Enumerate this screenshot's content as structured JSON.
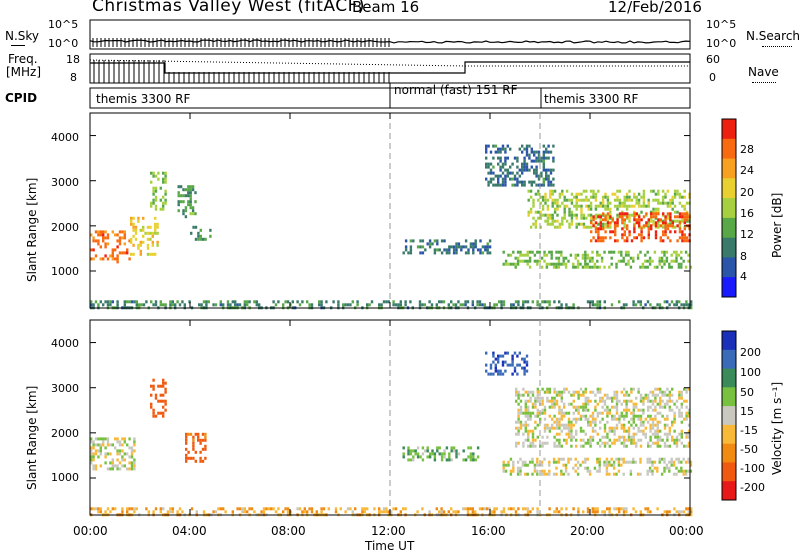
{
  "header": {
    "title": "Christmas Valley West (fitACF)",
    "beam": "Beam 16",
    "date": "12/Feb/2016"
  },
  "summary": {
    "nsky_label": "N.Sky",
    "nsky_ticks": [
      "10^5",
      "10^0"
    ],
    "nsearch_label": "N.Search",
    "nsearch_ticks": [
      "10^5",
      "10^0"
    ],
    "freq_label": "Freq.",
    "freq_unit": "[MHz]",
    "freq_ticks": [
      "18",
      "8"
    ],
    "nave_label": "Nave",
    "nave_ticks": [
      "60",
      "0"
    ],
    "cpid_label": "CPID",
    "cpid_segments": [
      {
        "label": "themis 3300 RF",
        "start_hour": 0
      },
      {
        "label": "normal (fast) 151 RF",
        "start_hour": 12
      },
      {
        "label": "themis 3300 RF",
        "start_hour": 18
      }
    ]
  },
  "axes": {
    "ylabel": "Slant Range [km]",
    "yticks": [
      "1000",
      "2000",
      "3000",
      "4000"
    ],
    "xlabel": "Time UT",
    "xticks": [
      "00:00",
      "04:00",
      "08:00",
      "12:00",
      "16:00",
      "20:00",
      "00:00"
    ]
  },
  "power_colorbar": {
    "label": "Power [dB]",
    "ticks": [
      "4",
      "8",
      "12",
      "16",
      "20",
      "24",
      "28"
    ],
    "colors": [
      "#1a1aff",
      "#2a55a8",
      "#3a7a6a",
      "#58a848",
      "#a6d040",
      "#e8d030",
      "#f8a020",
      "#f86a10",
      "#ee2010"
    ]
  },
  "velocity_colorbar": {
    "label": "Velocity [m s⁻¹]",
    "ticks": [
      "200",
      "100",
      "50",
      "15",
      "-15",
      "-50",
      "-100",
      "-200"
    ],
    "colors": [
      "#1a30b8",
      "#3a6ab8",
      "#3a8a5a",
      "#78c040",
      "#c8c8c0",
      "#f8b838",
      "#f08a10",
      "#f05a10",
      "#e81818"
    ]
  },
  "chart_data": {
    "type": "heatmap",
    "x_range_hours": [
      0,
      24
    ],
    "y_range_km": [
      180,
      4500
    ],
    "grid": false,
    "time_markers_hours": [
      12,
      18
    ],
    "panels": [
      {
        "name": "Power",
        "unit": "dB",
        "regions": [
          {
            "t": [
              0.0,
              1.6
            ],
            "r": [
              1200,
              1900
            ],
            "value": 26
          },
          {
            "t": [
              1.6,
              2.7
            ],
            "r": [
              1400,
              2200
            ],
            "value": 20
          },
          {
            "t": [
              2.4,
              3.0
            ],
            "r": [
              2400,
              3200
            ],
            "value": 14
          },
          {
            "t": [
              3.5,
              4.2
            ],
            "r": [
              2200,
              2900
            ],
            "value": 12
          },
          {
            "t": [
              4.0,
              4.8
            ],
            "r": [
              1700,
              2000
            ],
            "value": 10
          },
          {
            "t": [
              0.0,
              24.0
            ],
            "r": [
              200,
              350
            ],
            "value": 10
          },
          {
            "t": [
              12.5,
              16.0
            ],
            "r": [
              1400,
              1700
            ],
            "value": 8
          },
          {
            "t": [
              15.8,
              18.5
            ],
            "r": [
              2900,
              3800
            ],
            "value": 8
          },
          {
            "t": [
              17.5,
              24.0
            ],
            "r": [
              2000,
              2800
            ],
            "value": 16
          },
          {
            "t": [
              20.0,
              24.0
            ],
            "r": [
              1700,
              2300
            ],
            "value": 28
          },
          {
            "t": [
              16.5,
              24.0
            ],
            "r": [
              1100,
              1450
            ],
            "value": 14
          }
        ]
      },
      {
        "name": "Velocity",
        "unit": "m s-1",
        "regions": [
          {
            "t": [
              0.0,
              1.8
            ],
            "r": [
              1200,
              1900
            ],
            "value": 0
          },
          {
            "t": [
              2.4,
              3.0
            ],
            "r": [
              2400,
              3200
            ],
            "value": -150
          },
          {
            "t": [
              3.8,
              4.6
            ],
            "r": [
              1400,
              2000
            ],
            "value": -120
          },
          {
            "t": [
              12.5,
              15.5
            ],
            "r": [
              1400,
              1700
            ],
            "value": 40
          },
          {
            "t": [
              15.8,
              17.5
            ],
            "r": [
              3300,
              3800
            ],
            "value": 180
          },
          {
            "t": [
              17.0,
              24.0
            ],
            "r": [
              1700,
              3000
            ],
            "value": 0
          },
          {
            "t": [
              16.5,
              24.0
            ],
            "r": [
              1100,
              1450
            ],
            "value": 0
          },
          {
            "t": [
              0.0,
              24.0
            ],
            "r": [
              200,
              350
            ],
            "value": -40
          }
        ]
      }
    ]
  }
}
